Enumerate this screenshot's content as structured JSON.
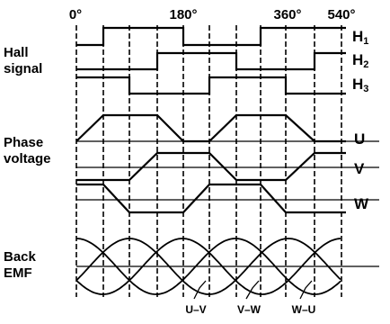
{
  "angles": [
    "0°",
    "180°",
    "360°",
    "540°"
  ],
  "sections": {
    "hall": [
      "Hall",
      "signal"
    ],
    "phase": [
      "Phase",
      "voltage"
    ],
    "emf": [
      "Back",
      "EMF"
    ]
  },
  "hall_signals": [
    {
      "name": "H",
      "sub": "1"
    },
    {
      "name": "H",
      "sub": "2"
    },
    {
      "name": "H",
      "sub": "3"
    }
  ],
  "phases": [
    "U",
    "V",
    "W"
  ],
  "crossings": [
    "U–V",
    "V–W",
    "W–U"
  ]
}
